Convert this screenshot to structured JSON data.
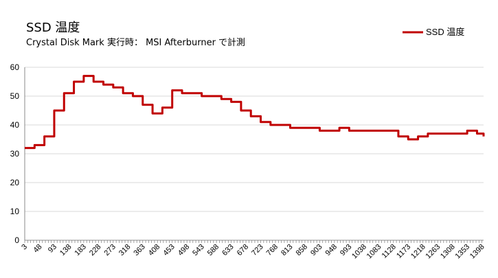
{
  "chart_data": {
    "type": "line",
    "title": "SSD 温度",
    "subtitle": "Crystal Disk Mark 実行時： MSI Afterburner で計測",
    "xlabel": "",
    "ylabel": "",
    "ylim": [
      0,
      60
    ],
    "yticks": [
      0,
      10,
      20,
      30,
      40,
      50,
      60
    ],
    "grid": true,
    "legend": "top-right",
    "line_color": "#c00000",
    "xlim": [
      3,
      1403
    ],
    "xtick_labels": [
      "3",
      "48",
      "93",
      "138",
      "183",
      "228",
      "273",
      "318",
      "363",
      "408",
      "453",
      "498",
      "543",
      "588",
      "633",
      "678",
      "723",
      "768",
      "813",
      "858",
      "903",
      "948",
      "993",
      "1038",
      "1083",
      "1128",
      "1173",
      "1218",
      "1263",
      "1308",
      "1353",
      "1398"
    ],
    "series": [
      {
        "name": "SSD 温度",
        "x": [
          3,
          33,
          63,
          93,
          123,
          153,
          183,
          213,
          243,
          273,
          303,
          333,
          363,
          393,
          423,
          453,
          483,
          513,
          543,
          573,
          603,
          633,
          663,
          693,
          723,
          753,
          783,
          813,
          843,
          873,
          903,
          933,
          963,
          993,
          1023,
          1053,
          1083,
          1113,
          1143,
          1173,
          1203,
          1233,
          1263,
          1293,
          1323,
          1353,
          1383,
          1403
        ],
        "y": [
          32,
          33,
          36,
          45,
          51,
          55,
          57,
          55,
          54,
          53,
          51,
          50,
          47,
          44,
          46,
          52,
          51,
          51,
          50,
          50,
          49,
          48,
          45,
          43,
          41,
          40,
          40,
          39,
          39,
          39,
          38,
          38,
          39,
          38,
          38,
          38,
          38,
          38,
          36,
          35,
          36,
          37,
          37,
          37,
          37,
          38,
          37,
          36
        ]
      }
    ]
  }
}
